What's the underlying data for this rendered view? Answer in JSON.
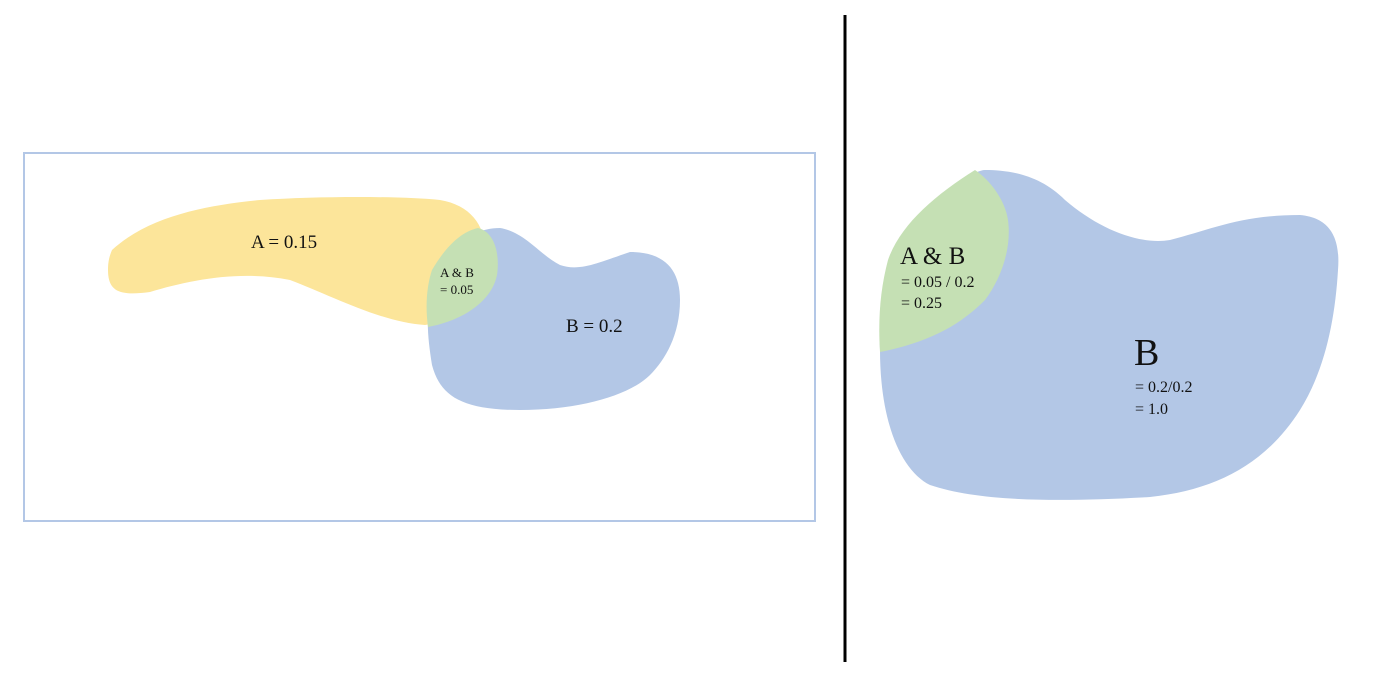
{
  "left_panel": {
    "region_a": {
      "label": "A = 0.15",
      "color": "#fce59a"
    },
    "region_b": {
      "label": "B = 0.2",
      "color": "#b3c7e6"
    },
    "region_ab": {
      "label_line1": "A & B",
      "label_line2": "= 0.05",
      "color": "#c5e0b4"
    },
    "frame_color": "#b3c7e6"
  },
  "right_panel": {
    "region_b": {
      "title": "B",
      "line1": "= 0.2/0.2",
      "line2": "= 1.0",
      "color": "#b3c7e6"
    },
    "region_ab": {
      "title": "A & B",
      "line1": "= 0.05 / 0.2",
      "line2": "= 0.25",
      "color": "#c5e0b4"
    }
  },
  "divider_color": "#000000"
}
